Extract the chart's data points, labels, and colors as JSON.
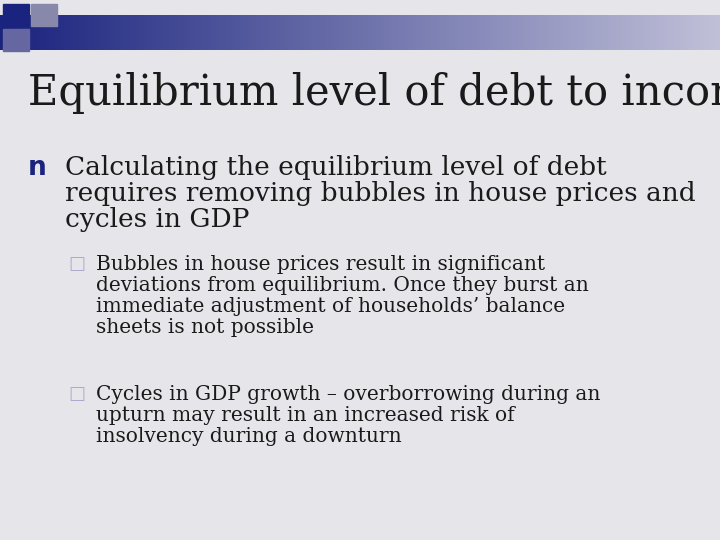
{
  "title": "Equilibrium level of debt to income",
  "background_color": "#e6e6ea",
  "title_color": "#1a1a1a",
  "title_fontsize": 30,
  "header_bar_color_left": "#1a237e",
  "header_bar_color_right": "#c0c0d8",
  "bullet_color": "#1a237e",
  "bullet_marker": "n",
  "sub_bullet_marker": "¤",
  "sub_bullet_color": "#aaaacc",
  "text_color": "#1a1a1a",
  "bullet_fontsize": 19,
  "sub_bullet_fontsize": 14.5,
  "bullet_text_line1": "Calculating the equilibrium level of debt",
  "bullet_text_line2": "requires removing bubbles in house prices and",
  "bullet_text_line3": "cycles in GDP",
  "sub_bullet_1_line1": "Bubbles in house prices result in significant",
  "sub_bullet_1_line2": "deviations from equilibrium. Once they burst an",
  "sub_bullet_1_line3": "immediate adjustment of households’ balance",
  "sub_bullet_1_line4": "sheets is not possible",
  "sub_bullet_2_line1": "Cycles in GDP growth – overborrowing during an",
  "sub_bullet_2_line2": "upturn may result in an increased risk of",
  "sub_bullet_2_line3": "insolvency during a downturn"
}
